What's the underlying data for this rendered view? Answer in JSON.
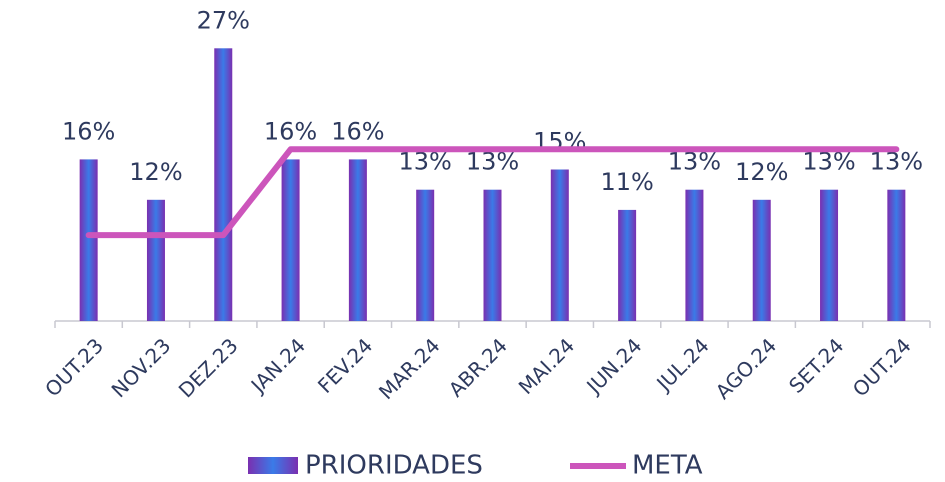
{
  "chart_data": {
    "type": "bar",
    "categories": [
      "OUT.23",
      "NOV.23",
      "DEZ.23",
      "JAN.24",
      "FEV.24",
      "MAR.24",
      "ABR.24",
      "MAI.24",
      "JUN.24",
      "JUL.24",
      "AGO.24",
      "SET.24",
      "OUT.24"
    ],
    "series": [
      {
        "name": "PRIORIDADES",
        "type": "bar",
        "color": "#3a56d8",
        "values": [
          16,
          12,
          27,
          16,
          16,
          13,
          13,
          15,
          11,
          13,
          12,
          13,
          13
        ],
        "value_labels": [
          "16%",
          "12%",
          "27%",
          "16%",
          "16%",
          "13%",
          "13%",
          "15%",
          "11%",
          "13%",
          "12%",
          "13%",
          "13%"
        ]
      },
      {
        "name": "META",
        "type": "line",
        "color": "#cc55bb",
        "values": [
          8.5,
          8.5,
          8.5,
          17,
          17,
          17,
          17,
          17,
          17,
          17,
          17,
          17,
          17
        ]
      }
    ],
    "ylim": [
      0,
      30
    ]
  }
}
